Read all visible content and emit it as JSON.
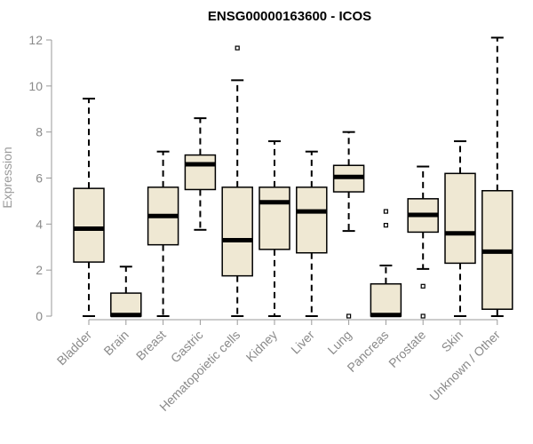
{
  "chart_data": {
    "type": "box",
    "title": "ENSG00000163600 - ICOS",
    "xlabel": "",
    "ylabel": "Expression",
    "ylim": [
      0,
      12
    ],
    "yticks": [
      0,
      2,
      4,
      6,
      8,
      10,
      12
    ],
    "box_fill": "#efe8d3",
    "box_stroke": "#000000",
    "categories": [
      "Bladder",
      "Brain",
      "Breast",
      "Gastric",
      "Hematopoietic cells",
      "Kidney",
      "Liver",
      "Lung",
      "Pancreas",
      "Prostate",
      "Skin",
      "Unknown / Other"
    ],
    "boxes": [
      {
        "whisker_low": 0.0,
        "q1": 2.35,
        "median": 3.8,
        "q3": 5.55,
        "whisker_high": 9.45,
        "outliers": []
      },
      {
        "whisker_low": 0.0,
        "q1": 0.0,
        "median": 0.05,
        "q3": 1.0,
        "whisker_high": 2.15,
        "outliers": []
      },
      {
        "whisker_low": 0.0,
        "q1": 3.1,
        "median": 4.35,
        "q3": 5.6,
        "whisker_high": 7.15,
        "outliers": []
      },
      {
        "whisker_low": 3.75,
        "q1": 5.5,
        "median": 6.6,
        "q3": 7.0,
        "whisker_high": 8.6,
        "outliers": []
      },
      {
        "whisker_low": 0.0,
        "q1": 1.75,
        "median": 3.3,
        "q3": 5.6,
        "whisker_high": 10.25,
        "outliers": [
          11.65
        ]
      },
      {
        "whisker_low": 0.0,
        "q1": 2.9,
        "median": 4.95,
        "q3": 5.6,
        "whisker_high": 7.6,
        "outliers": []
      },
      {
        "whisker_low": 0.0,
        "q1": 2.75,
        "median": 4.55,
        "q3": 5.6,
        "whisker_high": 7.15,
        "outliers": []
      },
      {
        "whisker_low": 3.7,
        "q1": 5.4,
        "median": 6.05,
        "q3": 6.55,
        "whisker_high": 8.0,
        "outliers": [
          0.0
        ]
      },
      {
        "whisker_low": 0.0,
        "q1": 0.0,
        "median": 0.05,
        "q3": 1.4,
        "whisker_high": 2.2,
        "outliers": [
          3.95,
          4.55
        ]
      },
      {
        "whisker_low": 2.05,
        "q1": 3.65,
        "median": 4.4,
        "q3": 5.1,
        "whisker_high": 6.5,
        "outliers": [
          1.3,
          0.0
        ]
      },
      {
        "whisker_low": 0.0,
        "q1": 2.3,
        "median": 3.6,
        "q3": 6.2,
        "whisker_high": 7.6,
        "outliers": []
      },
      {
        "whisker_low": 0.0,
        "q1": 0.3,
        "median": 2.8,
        "q3": 5.45,
        "whisker_high": 12.1,
        "outliers": []
      }
    ]
  }
}
